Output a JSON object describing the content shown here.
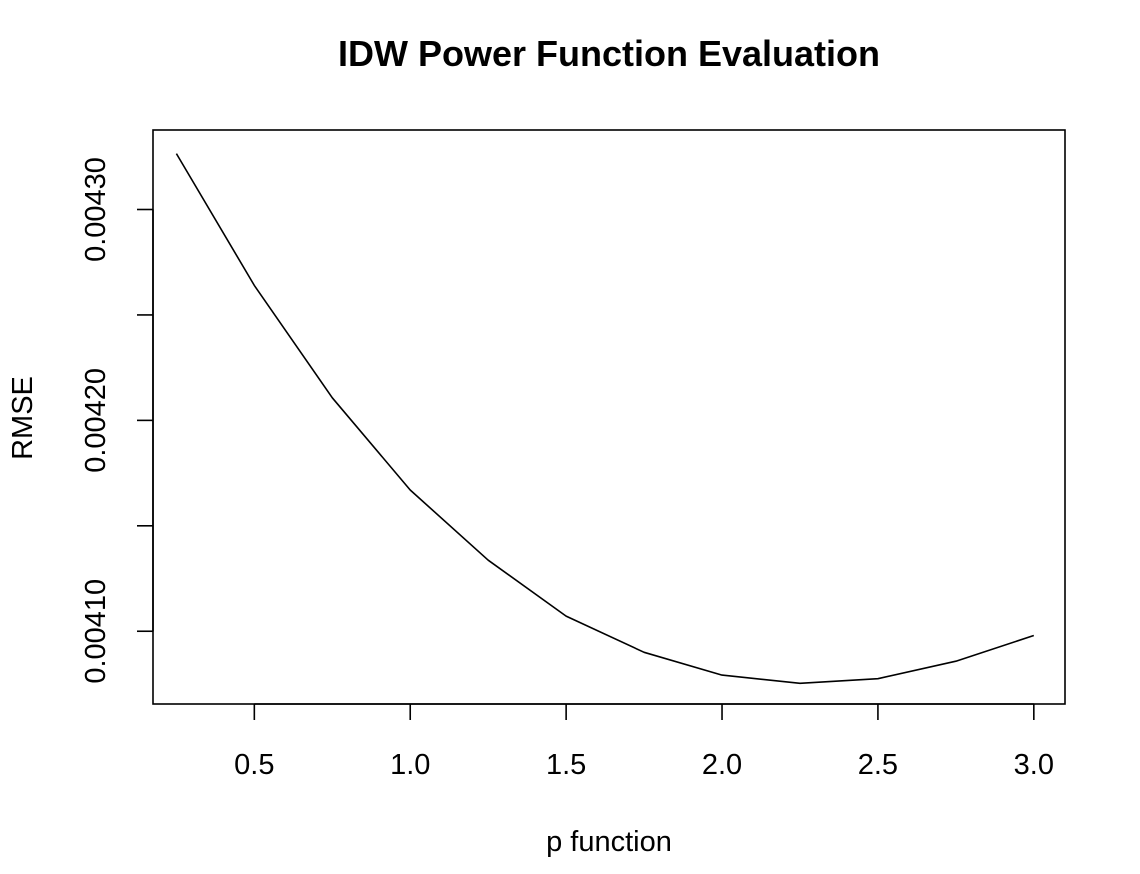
{
  "chart_data": {
    "type": "line",
    "title": "IDW Power Function Evaluation",
    "xlabel": "p function",
    "ylabel": "RMSE",
    "x": [
      0.25,
      0.5,
      0.75,
      1.0,
      1.25,
      1.5,
      1.75,
      2.0,
      2.25,
      2.5,
      2.75,
      3.0
    ],
    "series": [
      {
        "values": [
          0.0043265,
          0.004264,
          0.0042107,
          0.004167,
          0.0041337,
          0.0041072,
          0.00409,
          0.0040792,
          0.0040753,
          0.0040775,
          0.0040858,
          0.004098
        ]
      }
    ],
    "xlim": [
      0.175,
      3.1
    ],
    "ylim": [
      0.0040655,
      0.0043377
    ],
    "xticks": [
      0.5,
      1.0,
      1.5,
      2.0,
      2.5,
      3.0
    ],
    "xtick_labels": [
      "0.5",
      "1.0",
      "1.5",
      "2.0",
      "2.5",
      "3.0"
    ],
    "yticks_major": [
      0.0041,
      0.0042,
      0.0043
    ],
    "ytick_labels": [
      "0.00410",
      "0.00420",
      "0.00430"
    ],
    "yticks_minor": [
      0.00415,
      0.00425
    ],
    "grid": false,
    "legend": "none",
    "colors": {
      "line": "#000000",
      "frame": "#000000",
      "background": "#ffffff"
    }
  }
}
